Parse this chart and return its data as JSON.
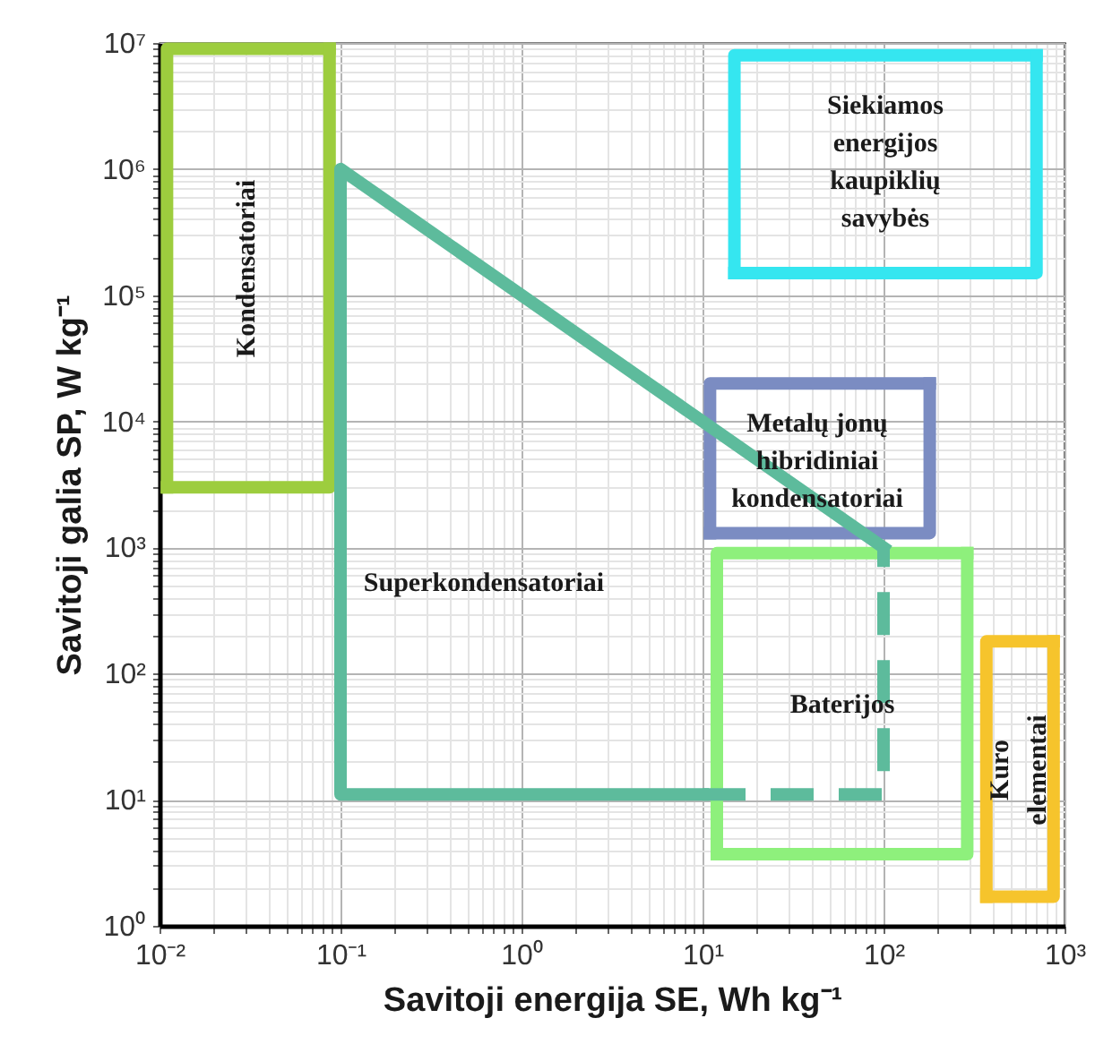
{
  "chart_data": {
    "type": "line",
    "xlabel": "Savitoji energija SE, Wh kg⁻¹",
    "ylabel": "Savitoji galia SP, W kg⁻¹",
    "log": "xy",
    "grid": true,
    "line_style": "solid",
    "xlim": [
      0.01,
      1000
    ],
    "xticks": [
      {
        "value": 0.01,
        "label": "10⁻²"
      },
      {
        "value": 0.02,
        "label": null
      },
      {
        "value": 0.03,
        "label": null
      },
      {
        "value": 0.04,
        "label": null
      },
      {
        "value": 0.05,
        "label": null
      },
      {
        "value": 0.06,
        "label": null
      },
      {
        "value": 0.07,
        "label": null
      },
      {
        "value": 0.08,
        "label": null
      },
      {
        "value": 0.09,
        "label": null
      },
      {
        "value": 0.1,
        "label": "10⁻¹"
      },
      {
        "value": 0.2,
        "label": null
      },
      {
        "value": 0.3,
        "label": null
      },
      {
        "value": 0.4,
        "label": null
      },
      {
        "value": 0.5,
        "label": null
      },
      {
        "value": 0.6,
        "label": null
      },
      {
        "value": 0.7,
        "label": null
      },
      {
        "value": 0.8,
        "label": null
      },
      {
        "value": 0.9,
        "label": null
      },
      {
        "value": 1,
        "label": "10⁰"
      },
      {
        "value": 2,
        "label": null
      },
      {
        "value": 3,
        "label": null
      },
      {
        "value": 4,
        "label": null
      },
      {
        "value": 5,
        "label": null
      },
      {
        "value": 6,
        "label": null
      },
      {
        "value": 7,
        "label": null
      },
      {
        "value": 8,
        "label": null
      },
      {
        "value": 9,
        "label": null
      },
      {
        "value": 10,
        "label": "10¹"
      },
      {
        "value": 20,
        "label": null
      },
      {
        "value": 30,
        "label": null
      },
      {
        "value": 40,
        "label": null
      },
      {
        "value": 50,
        "label": null
      },
      {
        "value": 60,
        "label": null
      },
      {
        "value": 70,
        "label": null
      },
      {
        "value": 80,
        "label": null
      },
      {
        "value": 90,
        "label": null
      },
      {
        "value": 100,
        "label": "10²"
      },
      {
        "value": 200,
        "label": null
      },
      {
        "value": 300,
        "label": null
      },
      {
        "value": 400,
        "label": null
      },
      {
        "value": 500,
        "label": null
      },
      {
        "value": 600,
        "label": null
      },
      {
        "value": 700,
        "label": null
      },
      {
        "value": 800,
        "label": null
      },
      {
        "value": 900,
        "label": null
      },
      {
        "value": 1000,
        "label": "10³"
      }
    ],
    "ylim": [
      1,
      10000000
    ],
    "yticks": [
      {
        "value": 1,
        "label": "10⁰"
      },
      {
        "value": 2,
        "label": null
      },
      {
        "value": 3,
        "label": null
      },
      {
        "value": 4,
        "label": null
      },
      {
        "value": 5,
        "label": null
      },
      {
        "value": 6,
        "label": null
      },
      {
        "value": 7,
        "label": null
      },
      {
        "value": 8,
        "label": null
      },
      {
        "value": 9,
        "label": null
      },
      {
        "value": 10,
        "label": "10¹"
      },
      {
        "value": 20,
        "label": null
      },
      {
        "value": 30,
        "label": null
      },
      {
        "value": 40,
        "label": null
      },
      {
        "value": 50,
        "label": null
      },
      {
        "value": 60,
        "label": null
      },
      {
        "value": 70,
        "label": null
      },
      {
        "value": 80,
        "label": null
      },
      {
        "value": 90,
        "label": null
      },
      {
        "value": 100,
        "label": "10²"
      },
      {
        "value": 200,
        "label": null
      },
      {
        "value": 300,
        "label": null
      },
      {
        "value": 400,
        "label": null
      },
      {
        "value": 500,
        "label": null
      },
      {
        "value": 600,
        "label": null
      },
      {
        "value": 700,
        "label": null
      },
      {
        "value": 800,
        "label": null
      },
      {
        "value": 900,
        "label": null
      },
      {
        "value": 1000,
        "label": "10³"
      },
      {
        "value": 2000,
        "label": null
      },
      {
        "value": 3000,
        "label": null
      },
      {
        "value": 4000,
        "label": null
      },
      {
        "value": 5000,
        "label": null
      },
      {
        "value": 6000,
        "label": null
      },
      {
        "value": 7000,
        "label": null
      },
      {
        "value": 8000,
        "label": null
      },
      {
        "value": 9000,
        "label": null
      },
      {
        "value": 10000,
        "label": "10⁴"
      },
      {
        "value": 20000,
        "label": null
      },
      {
        "value": 30000,
        "label": null
      },
      {
        "value": 40000,
        "label": null
      },
      {
        "value": 50000,
        "label": null
      },
      {
        "value": 60000,
        "label": null
      },
      {
        "value": 70000,
        "label": null
      },
      {
        "value": 80000,
        "label": null
      },
      {
        "value": 90000,
        "label": null
      },
      {
        "value": 100000,
        "label": "10⁵"
      },
      {
        "value": 200000,
        "label": null
      },
      {
        "value": 300000,
        "label": null
      },
      {
        "value": 400000,
        "label": null
      },
      {
        "value": 500000,
        "label": null
      },
      {
        "value": 600000,
        "label": null
      },
      {
        "value": 700000,
        "label": null
      },
      {
        "value": 800000,
        "label": null
      },
      {
        "value": 900000,
        "label": null
      },
      {
        "value": 1000000,
        "label": "10⁶"
      },
      {
        "value": 2000000,
        "label": null
      },
      {
        "value": 3000000,
        "label": null
      },
      {
        "value": 4000000,
        "label": null
      },
      {
        "value": 5000000,
        "label": null
      },
      {
        "value": 6000000,
        "label": null
      },
      {
        "value": 7000000,
        "label": null
      },
      {
        "value": 8000000,
        "label": null
      },
      {
        "value": 9000000,
        "label": null
      },
      {
        "value": 10000000,
        "label": "10⁷"
      }
    ],
    "series": [
      {
        "color": "#9dcd3e",
        "x": [
          0.011,
          0.011,
          0.087
        ],
        "values": [
          3000,
          9000000,
          9000000
        ]
      },
      {
        "color": "#9dcd3e",
        "x": [
          0.087,
          0.087,
          0.011
        ],
        "values": [
          9000000,
          3000,
          3000
        ]
      },
      {
        "color": "#35e6f0",
        "x": [
          15,
          15,
          700
        ],
        "values": [
          150000,
          8000000,
          8000000
        ]
      },
      {
        "color": "#35e6f0",
        "x": [
          700,
          700,
          15
        ],
        "values": [
          8000000,
          150000,
          150000
        ]
      },
      {
        "color": "#7b8cc2",
        "x": [
          11,
          11,
          180
        ],
        "values": [
          1300,
          20000,
          20000
        ]
      },
      {
        "color": "#7b8cc2",
        "x": [
          180,
          180,
          11
        ],
        "values": [
          20000,
          1300,
          1300
        ]
      },
      {
        "color": "#8ef07c",
        "x": [
          12,
          12,
          290
        ],
        "values": [
          3.7,
          900,
          900
        ]
      },
      {
        "color": "#8ef07c",
        "x": [
          290,
          290,
          12
        ],
        "values": [
          900,
          3.7,
          3.7
        ]
      },
      {
        "color": "#f6c42c",
        "x": [
          370,
          370,
          870
        ],
        "values": [
          1.7,
          180,
          180
        ]
      },
      {
        "color": "#f6c42c",
        "x": [
          870,
          870,
          370
        ],
        "values": [
          180,
          1.7,
          1.7
        ]
      },
      {
        "color": "#5dbb9c",
        "x": [
          100,
          0.1,
          0.1,
          10
        ],
        "values": [
          1000,
          1000000,
          11,
          11
        ]
      },
      {
        "color": "#5dbb9c",
        "line_style": "dashed",
        "x": [
          10,
          100,
          100
        ],
        "values": [
          11,
          11,
          1000
        ]
      }
    ],
    "annotations": [
      "Kondensatoriai",
      "Siekiamos energijos kaupiklių savybės",
      "Metalų jonų hibridiniai kondensatoriai",
      "Superkondensatoriai",
      "Baterijos",
      "Kuro elementai"
    ]
  }
}
